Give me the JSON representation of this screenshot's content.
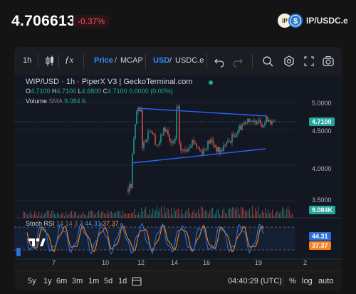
{
  "header": {
    "price": "4.706613",
    "change": "-0.37%",
    "pair": "IP/USDC.e",
    "icon_left_label": "IP"
  },
  "toolbar": {
    "interval": "1h",
    "price_label": "Price",
    "mcap_label": "MCAP",
    "usd_label": "USD",
    "quote_label": "USDC.e",
    "icons": [
      "candles-icon",
      "indicators-icon",
      "undo-icon",
      "redo-icon",
      "search-icon",
      "settings-icon",
      "fullscreen-icon",
      "camera-icon"
    ]
  },
  "chart": {
    "title": "WIP/USD · 1h · PiperX V3 | GeckoTerminal.com",
    "ohlc": {
      "O": "4.7100",
      "H": "4.7100",
      "L": "4.6800",
      "C": "4.7100",
      "chg": "0.0000 (0.00%)"
    },
    "volume_label": "Volume",
    "volume_sma_label": "SMA",
    "volume_sma_value": "9.084 K",
    "stoch_label": "Stoch RSI",
    "stoch_params": "14 14 3 3",
    "stoch_k": "44.31",
    "stoch_d": "37.37",
    "y_ticks": [
      "5.0000",
      "4.5000",
      "4.0000",
      "3.5000"
    ],
    "last_price_tag": "4.7100",
    "volume_tag": "9.084K",
    "stoch_k_tag": "44.31",
    "stoch_d_tag": "37.37",
    "x_ticks": [
      "7",
      "10",
      "12",
      "14",
      "16",
      "19",
      "2"
    ],
    "colors": {
      "up": "#26a69a",
      "down": "#ef5350",
      "trend": "#2962ff",
      "k": "#2d6fd6",
      "d": "#f7831e"
    }
  },
  "bottom": {
    "ranges": [
      "5y",
      "1y",
      "6m",
      "3m",
      "1m",
      "5d",
      "1d"
    ],
    "time": "04:40:29 (UTC)",
    "percent": "%",
    "log": "log",
    "auto": "auto"
  }
}
